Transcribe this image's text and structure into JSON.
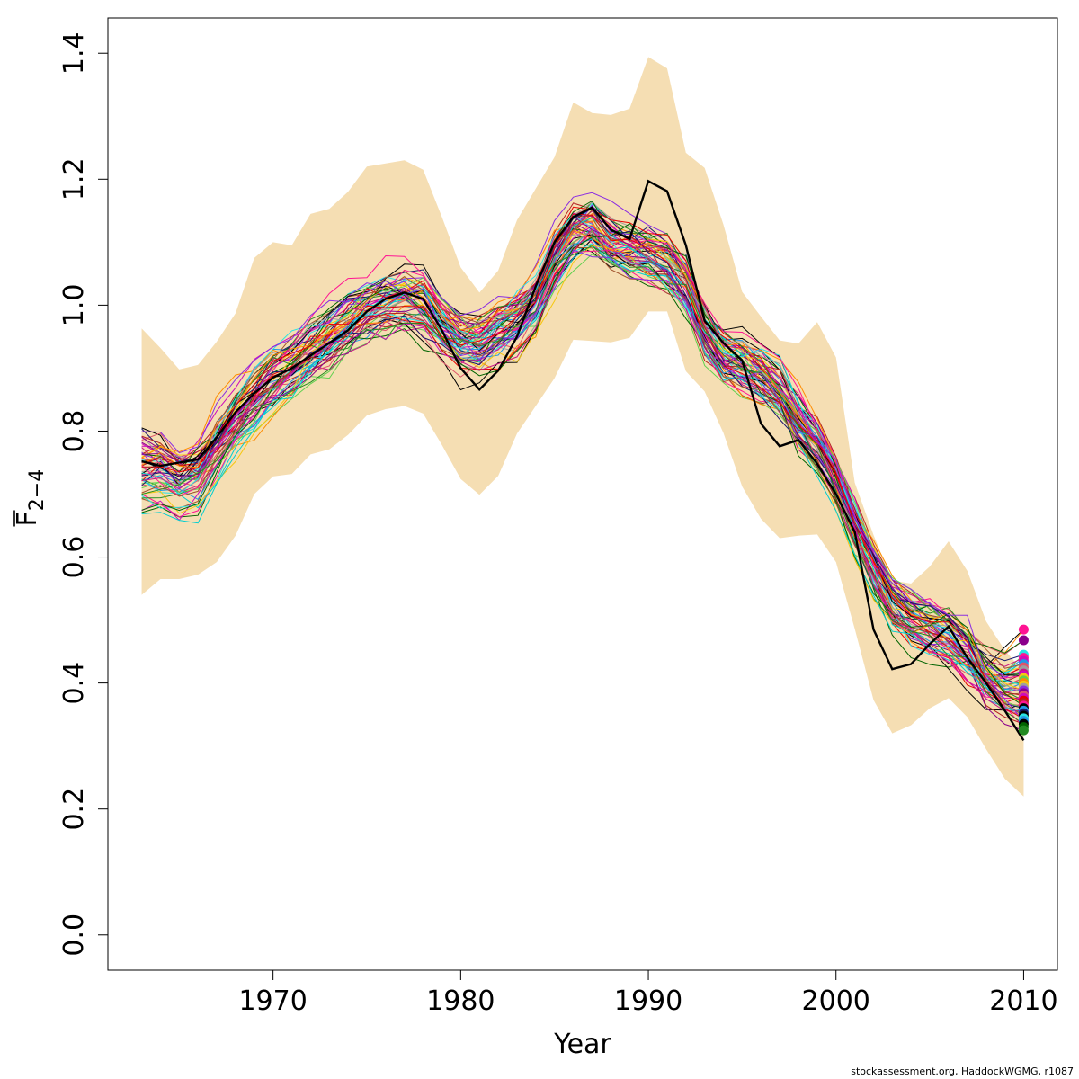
{
  "credit": "stockassessment.org, HaddockWGMG, r1087",
  "chart_data": {
    "type": "line",
    "xlabel": "Year",
    "ylabel": {
      "base": "F",
      "subscript": "2−4",
      "overline": true
    },
    "xlim": [
      1961.2,
      2011.8
    ],
    "ylim": [
      -0.056,
      1.456
    ],
    "x_ticks": [
      1970,
      1980,
      1990,
      2000,
      2010
    ],
    "x_tick_labels": [
      "1970",
      "1980",
      "1990",
      "2000",
      "2010"
    ],
    "y_ticks": [
      0.0,
      0.2,
      0.4,
      0.6,
      0.8,
      1.0,
      1.2,
      1.4
    ],
    "y_tick_labels": [
      "0.0",
      "0.2",
      "0.4",
      "0.6",
      "0.8",
      "1.0",
      "1.2",
      "1.4"
    ],
    "grid": false,
    "legend": "none",
    "band_color": "#F5DEB3",
    "band": {
      "x": [
        1963,
        1964,
        1965,
        1966,
        1967,
        1968,
        1969,
        1970,
        1971,
        1972,
        1973,
        1974,
        1975,
        1976,
        1977,
        1978,
        1979,
        1980,
        1981,
        1982,
        1983,
        1984,
        1985,
        1986,
        1987,
        1988,
        1989,
        1990,
        1991,
        1992,
        1993,
        1994,
        1995,
        1996,
        1997,
        1998,
        1999,
        2000,
        2001,
        2002,
        2003,
        2004,
        2005,
        2006,
        2007,
        2008,
        2009,
        2010
      ],
      "upper": [
        0.963,
        0.932,
        0.898,
        0.905,
        0.942,
        0.987,
        1.075,
        1.1,
        1.095,
        1.145,
        1.153,
        1.18,
        1.22,
        1.225,
        1.23,
        1.215,
        1.14,
        1.06,
        1.02,
        1.055,
        1.135,
        1.185,
        1.235,
        1.322,
        1.305,
        1.302,
        1.312,
        1.394,
        1.376,
        1.242,
        1.218,
        1.128,
        1.021,
        0.982,
        0.944,
        0.939,
        0.973,
        0.917,
        0.718,
        0.635,
        0.563,
        0.558,
        0.585,
        0.625,
        0.578,
        0.498,
        0.452,
        0.418
      ],
      "lower": [
        0.54,
        0.565,
        0.565,
        0.572,
        0.592,
        0.634,
        0.7,
        0.728,
        0.732,
        0.763,
        0.771,
        0.794,
        0.825,
        0.835,
        0.84,
        0.828,
        0.778,
        0.724,
        0.699,
        0.729,
        0.796,
        0.84,
        0.884,
        0.945,
        0.943,
        0.941,
        0.948,
        0.99,
        0.99,
        0.895,
        0.863,
        0.797,
        0.712,
        0.661,
        0.63,
        0.634,
        0.636,
        0.592,
        0.486,
        0.373,
        0.32,
        0.333,
        0.36,
        0.376,
        0.346,
        0.295,
        0.248,
        0.22
      ]
    },
    "x": [
      1963,
      1964,
      1965,
      1966,
      1967,
      1968,
      1969,
      1970,
      1971,
      1972,
      1973,
      1974,
      1975,
      1976,
      1977,
      1978,
      1979,
      1980,
      1981,
      1982,
      1983,
      1984,
      1985,
      1986,
      1987,
      1988,
      1989,
      1990,
      1991,
      1992,
      1993,
      1994,
      1995,
      1996,
      1997,
      1998,
      1999,
      2000,
      2001,
      2002,
      2003,
      2004,
      2005,
      2006,
      2007,
      2008,
      2009,
      2010
    ],
    "center": [
      0.745,
      0.742,
      0.722,
      0.732,
      0.775,
      0.815,
      0.852,
      0.88,
      0.902,
      0.928,
      0.951,
      0.975,
      0.995,
      1.005,
      1.012,
      1.003,
      0.967,
      0.938,
      0.935,
      0.955,
      0.968,
      1.0,
      1.07,
      1.115,
      1.125,
      1.1,
      1.092,
      1.085,
      1.07,
      1.038,
      0.96,
      0.922,
      0.905,
      0.89,
      0.865,
      0.815,
      0.78,
      0.725,
      0.65,
      0.585,
      0.53,
      0.505,
      0.492,
      0.475,
      0.448,
      0.415,
      0.385,
      0.365
    ],
    "highlight_series": {
      "color": "#000000",
      "values": [
        0.752,
        0.745,
        0.75,
        0.755,
        0.79,
        0.83,
        0.86,
        0.885,
        0.9,
        0.92,
        0.94,
        0.96,
        0.99,
        1.01,
        1.02,
        1.01,
        0.96,
        0.9,
        0.866,
        0.896,
        0.95,
        1.03,
        1.1,
        1.14,
        1.155,
        1.12,
        1.105,
        1.197,
        1.181,
        1.095,
        0.975,
        0.94,
        0.912,
        0.812,
        0.776,
        0.786,
        0.748,
        0.7,
        0.64,
        0.485,
        0.422,
        0.43,
        0.462,
        0.49,
        0.44,
        0.4,
        0.356,
        0.309
      ]
    },
    "retro_series_count": 60,
    "retro_colors": [
      "#000000",
      "#DF536B",
      "#61D04F",
      "#2297E6",
      "#28E2E5",
      "#CD0BBC",
      "#F5C710",
      "#9E9E9E",
      "#B22222",
      "#FF1493",
      "#8B008B",
      "#FF8C00",
      "#006400",
      "#191970",
      "#C71585",
      "#00CED1",
      "#A0522D",
      "#E60000",
      "#8A2BE2",
      "#228B22"
    ],
    "endpoints": {
      "x": 2010,
      "values": [
        0.485,
        0.468,
        0.445,
        0.44,
        0.435,
        0.43,
        0.425,
        0.42,
        0.415,
        0.412,
        0.408,
        0.404,
        0.4,
        0.396,
        0.392,
        0.388,
        0.384,
        0.38,
        0.376,
        0.372,
        0.368,
        0.364,
        0.36,
        0.356,
        0.352,
        0.348,
        0.344,
        0.34,
        0.335,
        0.33,
        0.325
      ],
      "colors": [
        "#FF1493",
        "#8B008B",
        "#28E2E5",
        "#FF1493",
        "#CD0BBC",
        "#2297E6",
        "#DF536B",
        "#9E9E9E",
        "#C71585",
        "#CD0BBC",
        "#F5C710",
        "#61D04F",
        "#FF8C00",
        "#F5C710",
        "#9E9E9E",
        "#8A2BE2",
        "#8B008B",
        "#DF536B",
        "#CD0BBC",
        "#E60000",
        "#B22222",
        "#FF1493",
        "#000000",
        "#2297E6",
        "#191970",
        "#000000",
        "#28E2E5",
        "#2297E6",
        "#000000",
        "#006400",
        "#228B22"
      ]
    }
  }
}
